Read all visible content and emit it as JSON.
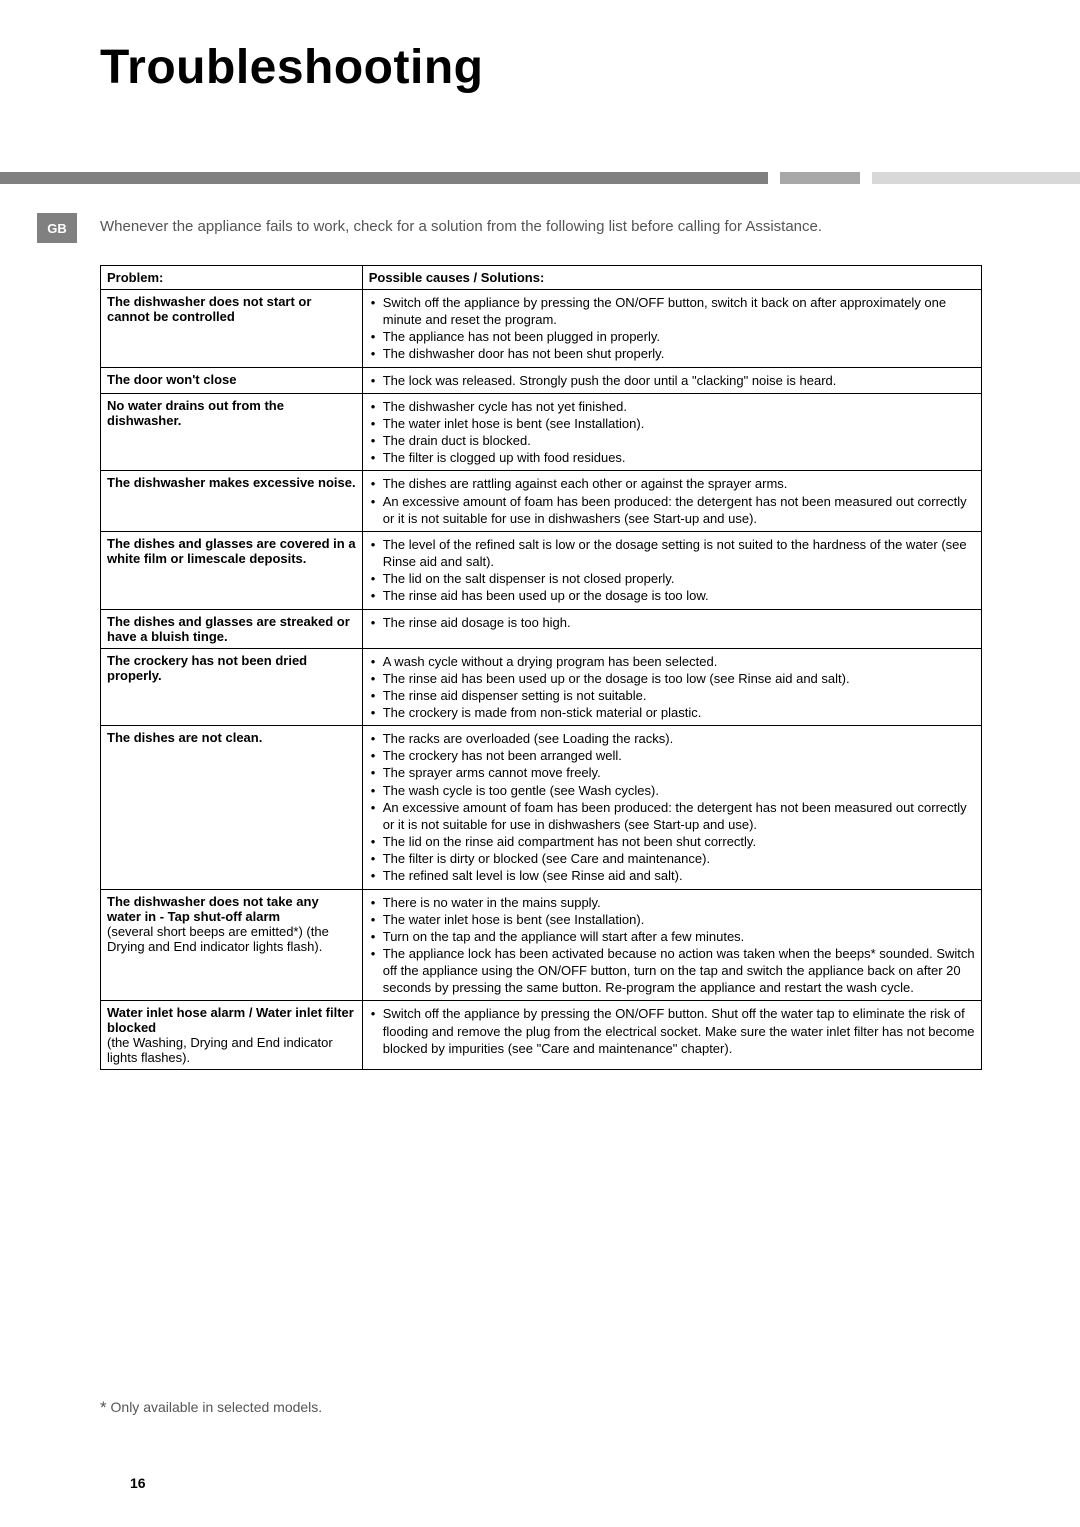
{
  "title": "Troubleshooting",
  "tab": "GB",
  "intro": "Whenever the appliance fails to work, check for a solution from the following list before calling for Assistance.",
  "table": {
    "header_problem": "Problem:",
    "header_solution": "Possible causes / Solutions:",
    "rows": [
      {
        "problem": "The dishwasher does not start or cannot be controlled",
        "solutions": [
          "Switch off the appliance by pressing the ON/OFF button, switch it back on after approximately one minute and reset the program.",
          "The appliance has not been plugged in properly.",
          "The dishwasher door has not been shut properly."
        ]
      },
      {
        "problem": "The door won't close",
        "solutions": [
          "The lock was released. Strongly push the door until a \"clacking\" noise is heard."
        ]
      },
      {
        "problem": "No water drains out from the dishwasher.",
        "solutions": [
          "The dishwasher cycle has not yet finished.",
          "The water inlet hose is bent (see Installation).",
          "The drain duct is blocked.",
          "The filter is clogged up with food residues."
        ]
      },
      {
        "problem": "The dishwasher makes excessive noise.",
        "solutions": [
          "The dishes are rattling against each other or against the sprayer arms.",
          "An excessive amount of foam has been produced: the detergent has not been measured out correctly or it is not suitable for use in dishwashers (see Start-up and use)."
        ]
      },
      {
        "problem": "The dishes and glasses are covered in a white film or limescale deposits.",
        "solutions": [
          "The level of the refined salt is low or the dosage setting is not suited to the hardness of the water (see Rinse aid and salt).",
          "The lid on the salt dispenser is not closed properly.",
          "The rinse aid has been used up or the dosage is too low."
        ]
      },
      {
        "problem": "The dishes and glasses are streaked or have a bluish tinge.",
        "solutions": [
          "The rinse aid dosage is too high."
        ]
      },
      {
        "problem": "The crockery has not been dried properly.",
        "solutions": [
          "A wash cycle without a drying program has been selected.",
          "The rinse aid has been used up or the dosage is too low (see Rinse aid and salt).",
          "The rinse aid dispenser setting is not suitable.",
          "The crockery is made from non-stick material or plastic."
        ]
      },
      {
        "problem": "The dishes are not clean.",
        "solutions": [
          "The racks are overloaded (see Loading the racks).",
          "The crockery has not been arranged well.",
          "The sprayer arms cannot move freely.",
          "The wash cycle is too gentle (see Wash cycles).",
          "An excessive amount of foam has been produced: the detergent has not been measured out correctly or it is not suitable for use in dishwashers (see Start-up and use).",
          "The lid on the rinse aid compartment has not been shut correctly.",
          "The filter is dirty or blocked (see Care and maintenance).",
          "The refined salt level is low (see Rinse aid and salt)."
        ]
      },
      {
        "problem_main": "The dishwasher does not take any water in - Tap shut-off alarm",
        "problem_sub": "(several short beeps are emitted*)\n(the Drying and End indicator lights flash).",
        "solutions": [
          "There is no water in the mains supply.",
          "The water inlet hose is bent (see Installation).",
          "Turn on the tap and the appliance will start after a few minutes.",
          "The appliance lock has been activated because no action was taken when the beeps* sounded. Switch off the appliance using the ON/OFF button, turn on the tap and switch the appliance back on after 20 seconds by pressing the same button. Re-program the appliance and restart the wash cycle."
        ]
      },
      {
        "problem_main": "Water inlet hose alarm / Water inlet filter blocked",
        "problem_sub": "(the  Washing, Drying and End indicator lights flashes).",
        "solutions": [
          "Switch off the appliance by pressing the ON/OFF button. Shut off the water tap to eliminate the risk of flooding and remove the plug from the electrical socket. Make sure the water inlet filter has not become blocked by impurities (see \"Care and maintenance\" chapter)."
        ]
      }
    ]
  },
  "footnote": "Only available in selected models.",
  "page_number": "16"
}
